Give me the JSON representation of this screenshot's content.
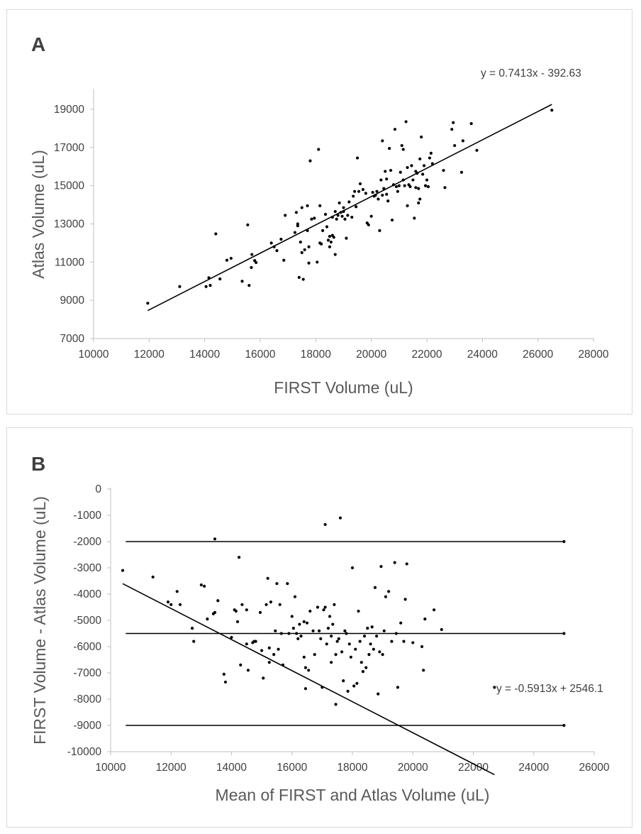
{
  "chart_data": [
    {
      "panel": "A",
      "type": "scatter",
      "title": "A",
      "xlabel": "FIRST Volume (uL)",
      "ylabel": "Atlas Volume (uL)",
      "xlim": [
        10000,
        28000
      ],
      "ylim": [
        7000,
        20000
      ],
      "xticks": [
        "10000",
        "12000",
        "14000",
        "16000",
        "18000",
        "20000",
        "22000",
        "24000",
        "26000",
        "28000"
      ],
      "yticks": [
        "7000",
        "9000",
        "11000",
        "13000",
        "15000",
        "17000",
        "19000"
      ],
      "trendline": {
        "slope": 0.7413,
        "intercept": -392.63,
        "x_range": [
          11950,
          26500
        ],
        "label": "y = 0.7413x - 392.63"
      },
      "points": [
        [
          11950,
          8850
        ],
        [
          13100,
          9720
        ],
        [
          14050,
          9720
        ],
        [
          14150,
          10180
        ],
        [
          14200,
          9780
        ],
        [
          14400,
          12480
        ],
        [
          14550,
          10120
        ],
        [
          14800,
          11100
        ],
        [
          14950,
          11200
        ],
        [
          15350,
          10000
        ],
        [
          15550,
          12950
        ],
        [
          15600,
          9780
        ],
        [
          15680,
          10720
        ],
        [
          15700,
          11400
        ],
        [
          15800,
          11080
        ],
        [
          15850,
          10980
        ],
        [
          16400,
          12000
        ],
        [
          16500,
          11800
        ],
        [
          16600,
          11600
        ],
        [
          16750,
          12200
        ],
        [
          16850,
          11100
        ],
        [
          16900,
          13450
        ],
        [
          17250,
          12550
        ],
        [
          17300,
          13600
        ],
        [
          17350,
          12900
        ],
        [
          17350,
          13000
        ],
        [
          17400,
          10200
        ],
        [
          17450,
          12050
        ],
        [
          17500,
          11500
        ],
        [
          17500,
          13850
        ],
        [
          17550,
          10100
        ],
        [
          17600,
          11650
        ],
        [
          17700,
          13950
        ],
        [
          17700,
          12650
        ],
        [
          17750,
          11800
        ],
        [
          17750,
          10950
        ],
        [
          17800,
          16300
        ],
        [
          17850,
          13250
        ],
        [
          17950,
          13300
        ],
        [
          18050,
          11000
        ],
        [
          18100,
          16900
        ],
        [
          18150,
          12000
        ],
        [
          18150,
          13950
        ],
        [
          18200,
          11950
        ],
        [
          18250,
          12650
        ],
        [
          18350,
          13500
        ],
        [
          18400,
          12850
        ],
        [
          18450,
          12150
        ],
        [
          18500,
          11800
        ],
        [
          18500,
          12350
        ],
        [
          18550,
          12050
        ],
        [
          18600,
          12400
        ],
        [
          18600,
          13350
        ],
        [
          18650,
          12300
        ],
        [
          18700,
          11400
        ],
        [
          18700,
          13650
        ],
        [
          18750,
          13250
        ],
        [
          18800,
          13450
        ],
        [
          18850,
          14100
        ],
        [
          18900,
          13600
        ],
        [
          18950,
          13400
        ],
        [
          19000,
          13650
        ],
        [
          19000,
          13850
        ],
        [
          19050,
          13250
        ],
        [
          19100,
          12250
        ],
        [
          19150,
          13450
        ],
        [
          19200,
          14150
        ],
        [
          19300,
          13350
        ],
        [
          19350,
          14450
        ],
        [
          19400,
          14700
        ],
        [
          19450,
          13900
        ],
        [
          19500,
          16450
        ],
        [
          19550,
          14700
        ],
        [
          19600,
          15100
        ],
        [
          19700,
          14800
        ],
        [
          19800,
          14600
        ],
        [
          19850,
          13050
        ],
        [
          19900,
          12950
        ],
        [
          20000,
          13400
        ],
        [
          20050,
          14650
        ],
        [
          20100,
          14450
        ],
        [
          20150,
          14500
        ],
        [
          20200,
          14700
        ],
        [
          20250,
          14300
        ],
        [
          20300,
          12650
        ],
        [
          20350,
          15300
        ],
        [
          20400,
          14500
        ],
        [
          20400,
          17350
        ],
        [
          20450,
          14850
        ],
        [
          20500,
          15750
        ],
        [
          20550,
          14550
        ],
        [
          20550,
          15350
        ],
        [
          20600,
          14200
        ],
        [
          20650,
          16950
        ],
        [
          20700,
          15800
        ],
        [
          20750,
          13200
        ],
        [
          20800,
          15050
        ],
        [
          20850,
          17950
        ],
        [
          20900,
          14950
        ],
        [
          20950,
          14700
        ],
        [
          21000,
          15000
        ],
        [
          21050,
          15700
        ],
        [
          21100,
          17100
        ],
        [
          21150,
          16900
        ],
        [
          21150,
          15300
        ],
        [
          21200,
          15000
        ],
        [
          21250,
          18350
        ],
        [
          21300,
          13950
        ],
        [
          21300,
          15950
        ],
        [
          21350,
          15050
        ],
        [
          21400,
          14950
        ],
        [
          21450,
          16050
        ],
        [
          21500,
          15300
        ],
        [
          21550,
          13300
        ],
        [
          21600,
          15750
        ],
        [
          21600,
          14900
        ],
        [
          21650,
          15650
        ],
        [
          21700,
          14100
        ],
        [
          21700,
          14850
        ],
        [
          21750,
          16400
        ],
        [
          21750,
          14300
        ],
        [
          21800,
          17550
        ],
        [
          21850,
          15600
        ],
        [
          21900,
          16050
        ],
        [
          21950,
          15000
        ],
        [
          22000,
          15300
        ],
        [
          22050,
          14950
        ],
        [
          22100,
          16450
        ],
        [
          22150,
          16700
        ],
        [
          22200,
          16150
        ],
        [
          22600,
          15800
        ],
        [
          22650,
          14900
        ],
        [
          22900,
          17950
        ],
        [
          22950,
          18300
        ],
        [
          23000,
          17100
        ],
        [
          23250,
          15700
        ],
        [
          23300,
          17350
        ],
        [
          23600,
          18250
        ],
        [
          23800,
          16850
        ],
        [
          26500,
          18950
        ]
      ]
    },
    {
      "panel": "B",
      "type": "scatter",
      "title": "B",
      "xlabel": "Mean of FIRST and Atlas Volume (uL)",
      "ylabel": "FIRST Volume - Atlas Volume (uL)",
      "xlim": [
        10000,
        26000
      ],
      "ylim": [
        -10000,
        0
      ],
      "xticks": [
        "10000",
        "12000",
        "14000",
        "16000",
        "18000",
        "20000",
        "22000",
        "24000",
        "26000"
      ],
      "yticks": [
        "0",
        "-1000",
        "-2000",
        "-3000",
        "-4000",
        "-5000",
        "-6000",
        "-7000",
        "-8000",
        "-9000",
        "-10000"
      ],
      "trendline": {
        "slope": -0.5913,
        "intercept": 2546.1,
        "x_range": [
          10400,
          22700
        ],
        "label": "y = -0.5913x + 2546.1"
      },
      "hlines": [
        {
          "y": -2000,
          "x_range": [
            10500,
            25000
          ]
        },
        {
          "y": -5500,
          "x_range": [
            10500,
            25000
          ]
        },
        {
          "y": -9000,
          "x_range": [
            10500,
            25000
          ]
        }
      ],
      "points": [
        [
          10400,
          -3100
        ],
        [
          11400,
          -3350
        ],
        [
          11900,
          -4300
        ],
        [
          12000,
          -4400
        ],
        [
          12200,
          -3900
        ],
        [
          12300,
          -4400
        ],
        [
          12700,
          -5300
        ],
        [
          12750,
          -5800
        ],
        [
          13000,
          -3650
        ],
        [
          13100,
          -3700
        ],
        [
          13200,
          -4950
        ],
        [
          13400,
          -4750
        ],
        [
          13450,
          -4700
        ],
        [
          13450,
          -1900
        ],
        [
          13550,
          -4250
        ],
        [
          13750,
          -7050
        ],
        [
          13800,
          -7350
        ],
        [
          14000,
          -5650
        ],
        [
          14100,
          -4600
        ],
        [
          14150,
          -4650
        ],
        [
          14200,
          -5050
        ],
        [
          14250,
          -2600
        ],
        [
          14300,
          -6700
        ],
        [
          14350,
          -4400
        ],
        [
          14500,
          -4600
        ],
        [
          14500,
          -5900
        ],
        [
          14550,
          -6900
        ],
        [
          14700,
          -5850
        ],
        [
          14750,
          -5800
        ],
        [
          14800,
          -5800
        ],
        [
          14950,
          -4700
        ],
        [
          15000,
          -6150
        ],
        [
          15050,
          -7200
        ],
        [
          15150,
          -4400
        ],
        [
          15200,
          -3400
        ],
        [
          15250,
          -6050
        ],
        [
          15250,
          -6600
        ],
        [
          15300,
          -4300
        ],
        [
          15400,
          -6300
        ],
        [
          15450,
          -5400
        ],
        [
          15500,
          -3600
        ],
        [
          15550,
          -6100
        ],
        [
          15600,
          -4400
        ],
        [
          15650,
          -5500
        ],
        [
          15700,
          -6700
        ],
        [
          15850,
          -3600
        ],
        [
          15900,
          -5500
        ],
        [
          16000,
          -4850
        ],
        [
          16050,
          -5300
        ],
        [
          16100,
          -4100
        ],
        [
          16150,
          -5500
        ],
        [
          16200,
          -5700
        ],
        [
          16250,
          -5150
        ],
        [
          16300,
          -5600
        ],
        [
          16400,
          -5050
        ],
        [
          16400,
          -6400
        ],
        [
          16450,
          -6800
        ],
        [
          16450,
          -7600
        ],
        [
          16500,
          -5100
        ],
        [
          16550,
          -6900
        ],
        [
          16600,
          -4650
        ],
        [
          16700,
          -5400
        ],
        [
          16750,
          -6300
        ],
        [
          16850,
          -4500
        ],
        [
          16900,
          -5400
        ],
        [
          16950,
          -5700
        ],
        [
          17000,
          -7550
        ],
        [
          17050,
          -4600
        ],
        [
          17100,
          -4500
        ],
        [
          17100,
          -1350
        ],
        [
          17150,
          -5900
        ],
        [
          17200,
          -5300
        ],
        [
          17250,
          -4850
        ],
        [
          17300,
          -5600
        ],
        [
          17300,
          -6600
        ],
        [
          17350,
          -5150
        ],
        [
          17400,
          -4400
        ],
        [
          17450,
          -6300
        ],
        [
          17450,
          -8200
        ],
        [
          17500,
          -5800
        ],
        [
          17550,
          -5700
        ],
        [
          17600,
          -1100
        ],
        [
          17650,
          -6200
        ],
        [
          17700,
          -7300
        ],
        [
          17750,
          -5400
        ],
        [
          17800,
          -5500
        ],
        [
          17850,
          -7700
        ],
        [
          17900,
          -5900
        ],
        [
          17950,
          -6400
        ],
        [
          18000,
          -3000
        ],
        [
          18050,
          -7500
        ],
        [
          18100,
          -6100
        ],
        [
          18150,
          -7400
        ],
        [
          18200,
          -4650
        ],
        [
          18250,
          -5800
        ],
        [
          18300,
          -6600
        ],
        [
          18350,
          -6950
        ],
        [
          18400,
          -5600
        ],
        [
          18450,
          -6800
        ],
        [
          18500,
          -5300
        ],
        [
          18550,
          -6300
        ],
        [
          18600,
          -5900
        ],
        [
          18650,
          -5250
        ],
        [
          18700,
          -6100
        ],
        [
          18750,
          -3750
        ],
        [
          18800,
          -5600
        ],
        [
          18850,
          -7800
        ],
        [
          18900,
          -6200
        ],
        [
          18950,
          -2950
        ],
        [
          19000,
          -6300
        ],
        [
          19050,
          -5400
        ],
        [
          19100,
          -4100
        ],
        [
          19200,
          -3900
        ],
        [
          19300,
          -5800
        ],
        [
          19400,
          -2800
        ],
        [
          19450,
          -5500
        ],
        [
          19500,
          -7550
        ],
        [
          19600,
          -5100
        ],
        [
          19700,
          -5800
        ],
        [
          19750,
          -4200
        ],
        [
          19800,
          -2850
        ],
        [
          20000,
          -5850
        ],
        [
          20300,
          -6000
        ],
        [
          20350,
          -6900
        ],
        [
          20400,
          -4950
        ],
        [
          20700,
          -4600
        ],
        [
          20950,
          -5350
        ],
        [
          22700,
          -7550
        ],
        [
          25000,
          -2000
        ],
        [
          25000,
          -5500
        ],
        [
          25000,
          -9000
        ]
      ]
    }
  ]
}
